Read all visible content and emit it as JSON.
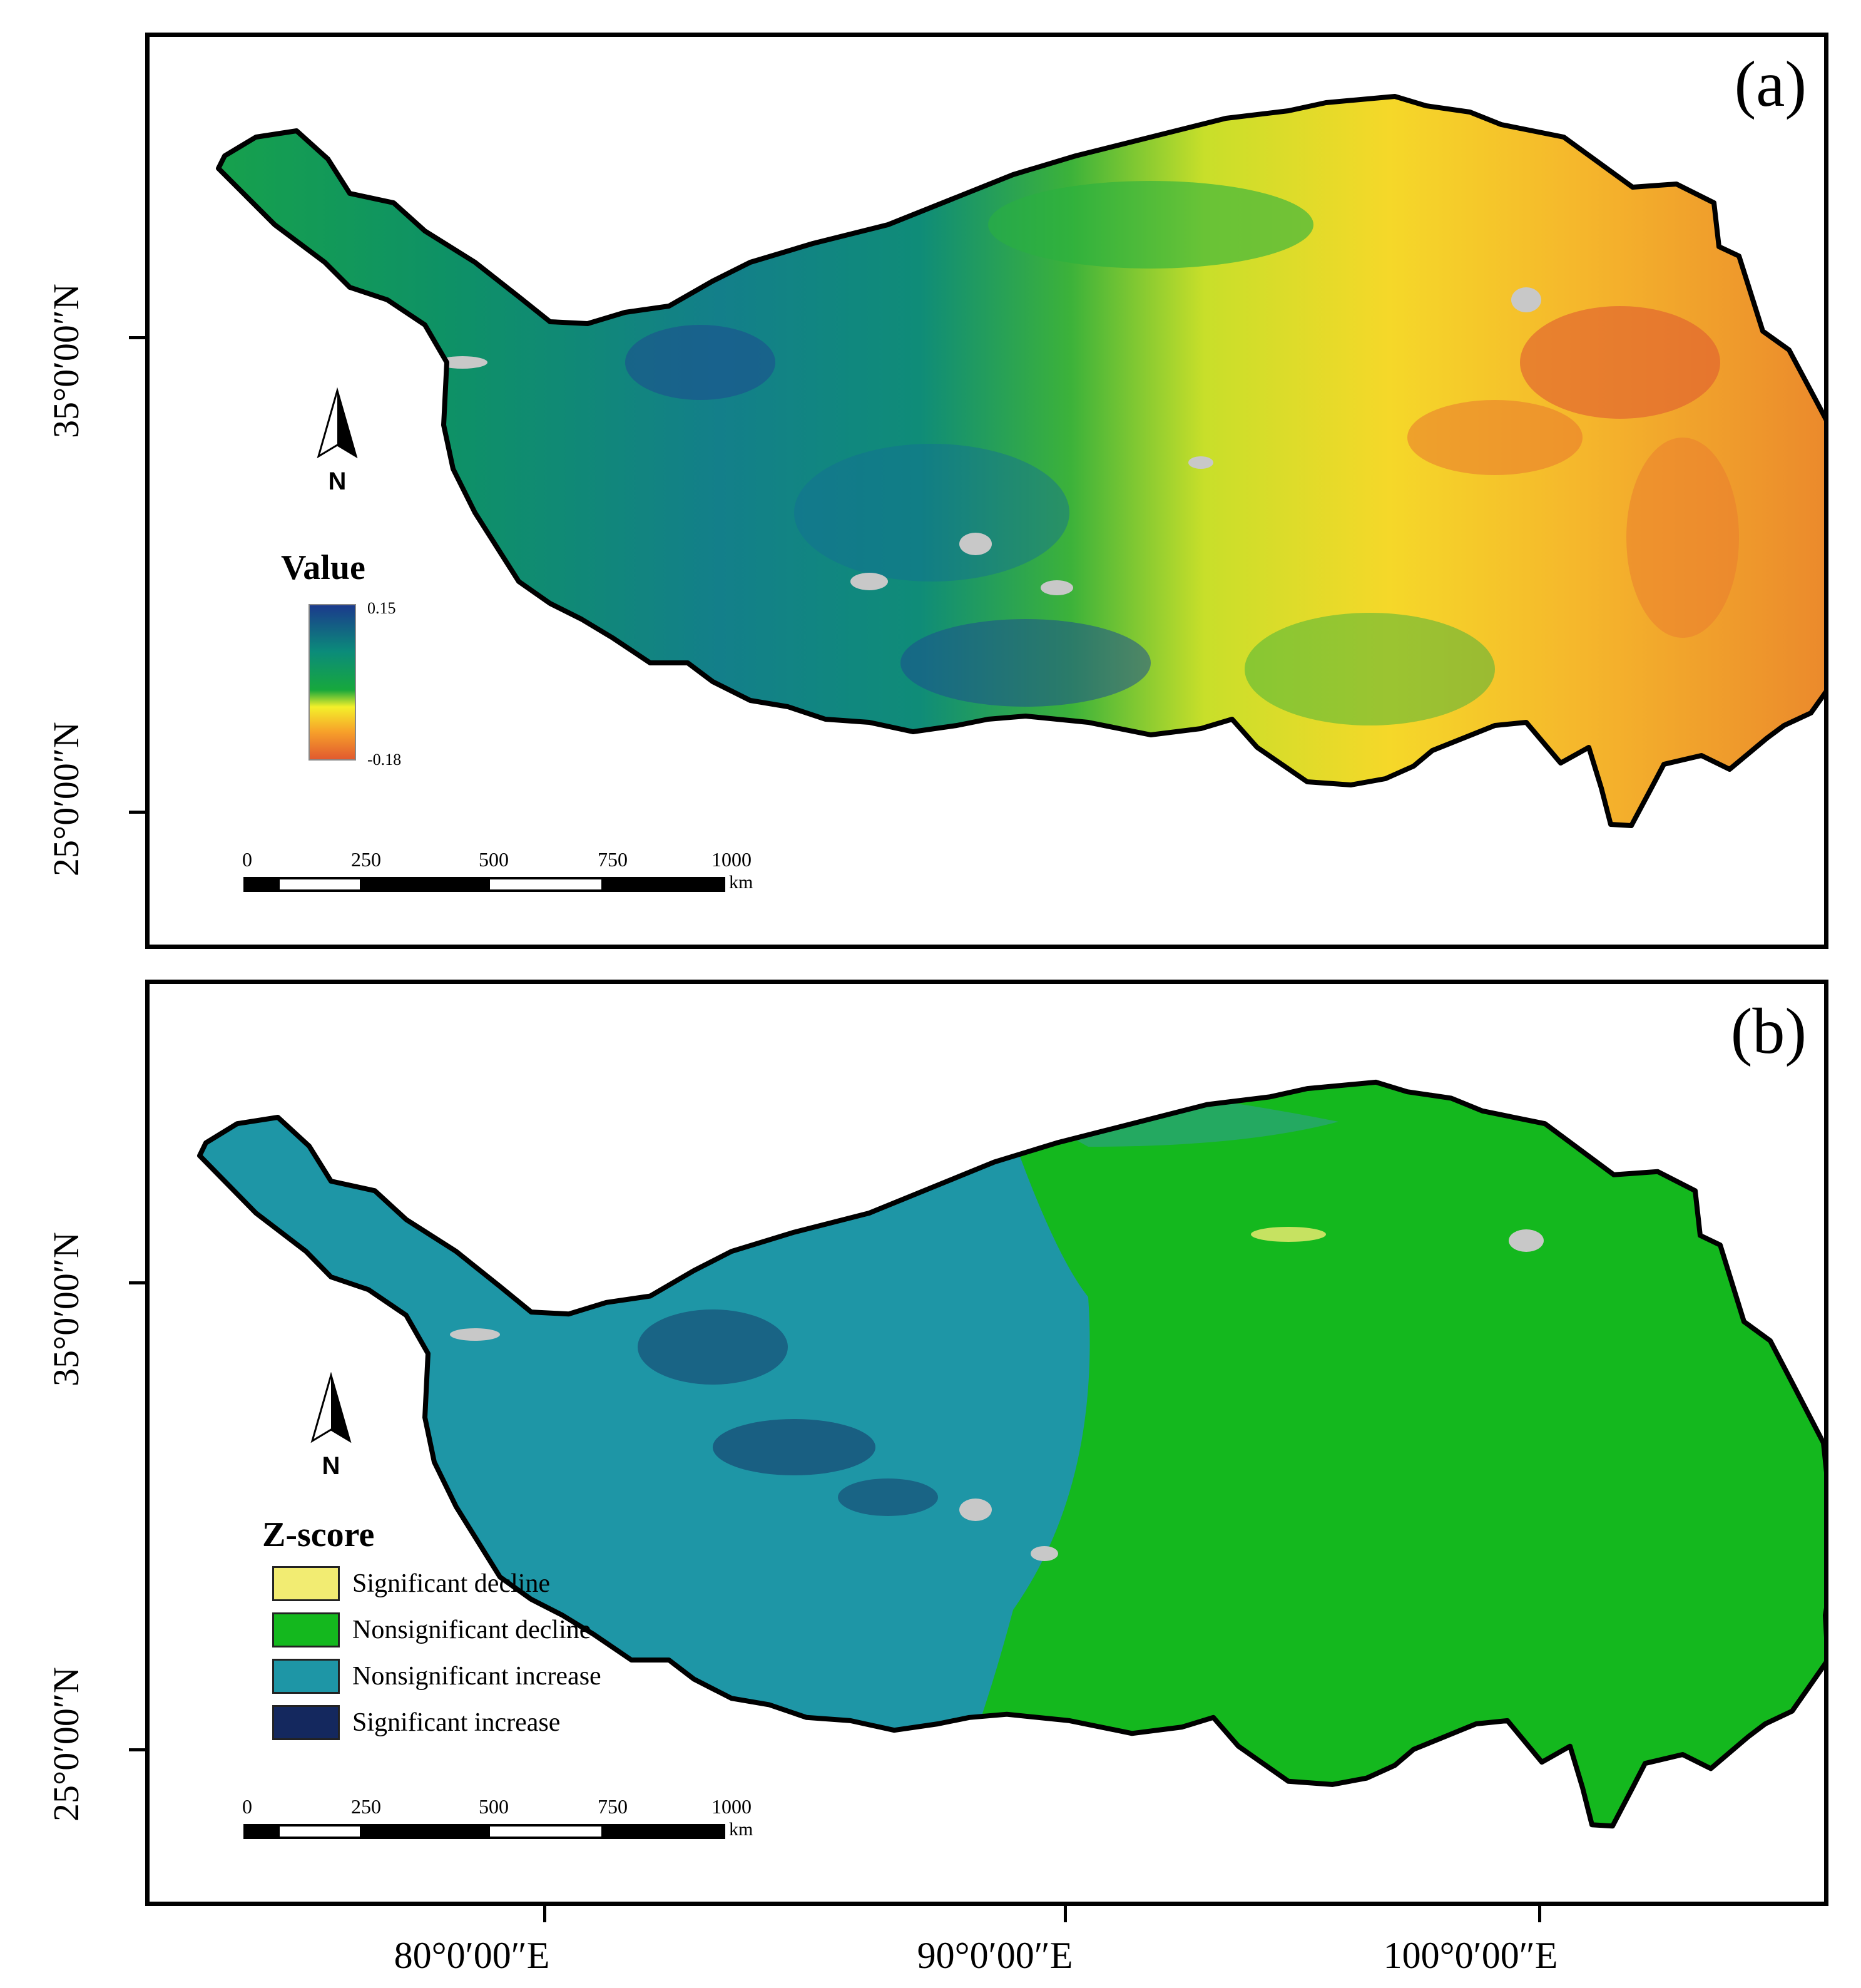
{
  "panels": {
    "a": {
      "label": "(a)"
    },
    "b": {
      "label": "(b)"
    }
  },
  "axes": {
    "latitude_labels": [
      "35°0′00″N",
      "25°0′00″N"
    ],
    "longitude_labels": [
      "80°0′00″E",
      "90°0′00″E",
      "100°0′00″E"
    ]
  },
  "north_arrow": {
    "letter": "N",
    "icon": "north-arrow-icon"
  },
  "legend_a": {
    "title": "Value",
    "max_label": "0.15",
    "min_label": "-0.18",
    "ramp_colors": [
      "#1b3a8c",
      "#0b8b7a",
      "#17a83c",
      "#f4f02a",
      "#f7a12a",
      "#e15a2f"
    ]
  },
  "legend_b": {
    "title": "Z-score",
    "items": [
      {
        "label": "Significant decline",
        "color": "#f2ec72"
      },
      {
        "label": "Nonsignificant decline",
        "color": "#14b81e"
      },
      {
        "label": "Nonsignificant increase",
        "color": "#1e96a6"
      },
      {
        "label": "Significant increase",
        "color": "#14285e"
      }
    ]
  },
  "scale_bar": {
    "ticks": [
      "0",
      "250",
      "500",
      "750",
      "1000"
    ],
    "unit": "km"
  },
  "colors": {
    "no_data": "#c8c8c8",
    "boundary": "#000000"
  }
}
